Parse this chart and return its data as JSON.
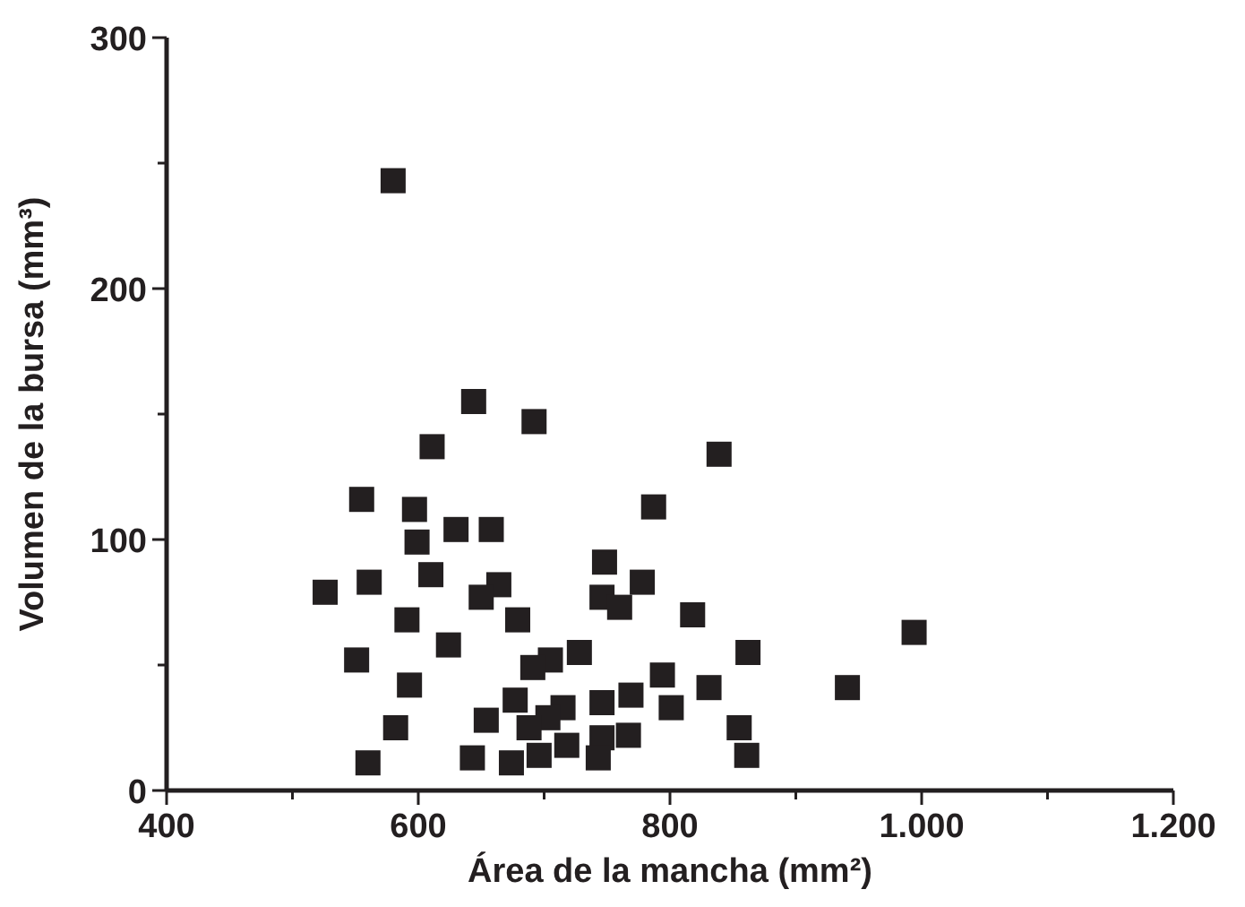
{
  "chart_data": {
    "type": "scatter",
    "xlabel": "Área de la mancha (mm²)",
    "ylabel": "Volumen de la bursa (mm³)",
    "marker": "square",
    "xlim": [
      400,
      1200
    ],
    "ylim": [
      0,
      300
    ],
    "xticks": [
      400,
      {
        "value": 500,
        "label": null
      },
      600,
      {
        "value": 700,
        "label": null
      },
      800,
      {
        "value": 900,
        "label": null
      },
      {
        "value": 1000,
        "label": "1.000"
      },
      {
        "value": 1100,
        "label": null
      },
      {
        "value": 1200,
        "label": "1.200"
      }
    ],
    "yticks": [
      0,
      {
        "value": 50,
        "label": null
      },
      100,
      {
        "value": 150,
        "label": null
      },
      200,
      {
        "value": 250,
        "label": null
      },
      300
    ],
    "series": [
      {
        "color": "#231f20",
        "x": [
          580,
          644,
          692,
          611,
          555,
          597,
          787,
          630,
          658,
          599,
          748,
          526,
          561,
          610,
          664,
          650,
          778,
          746,
          760,
          818,
          591,
          679,
          624,
          728,
          551,
          705,
          691,
          794,
          593,
          769,
          677,
          746,
          801,
          715,
          703,
          654,
          688,
          582,
          746,
          767,
          718,
          696,
          643,
          743,
          674,
          560,
          839,
          994,
          862,
          831,
          941,
          855,
          861
        ],
        "values": [
          243,
          155,
          147,
          137,
          116,
          112,
          113,
          104,
          104,
          99,
          91,
          79,
          83,
          86,
          82,
          77,
          83,
          77,
          73,
          70,
          68,
          68,
          58,
          55,
          52,
          52,
          49,
          46,
          42,
          38,
          36,
          35,
          33,
          33,
          29,
          28,
          25,
          25,
          21,
          22,
          18,
          14,
          13,
          13,
          11,
          11,
          134,
          63,
          55,
          41,
          41,
          25,
          14
        ]
      }
    ]
  }
}
